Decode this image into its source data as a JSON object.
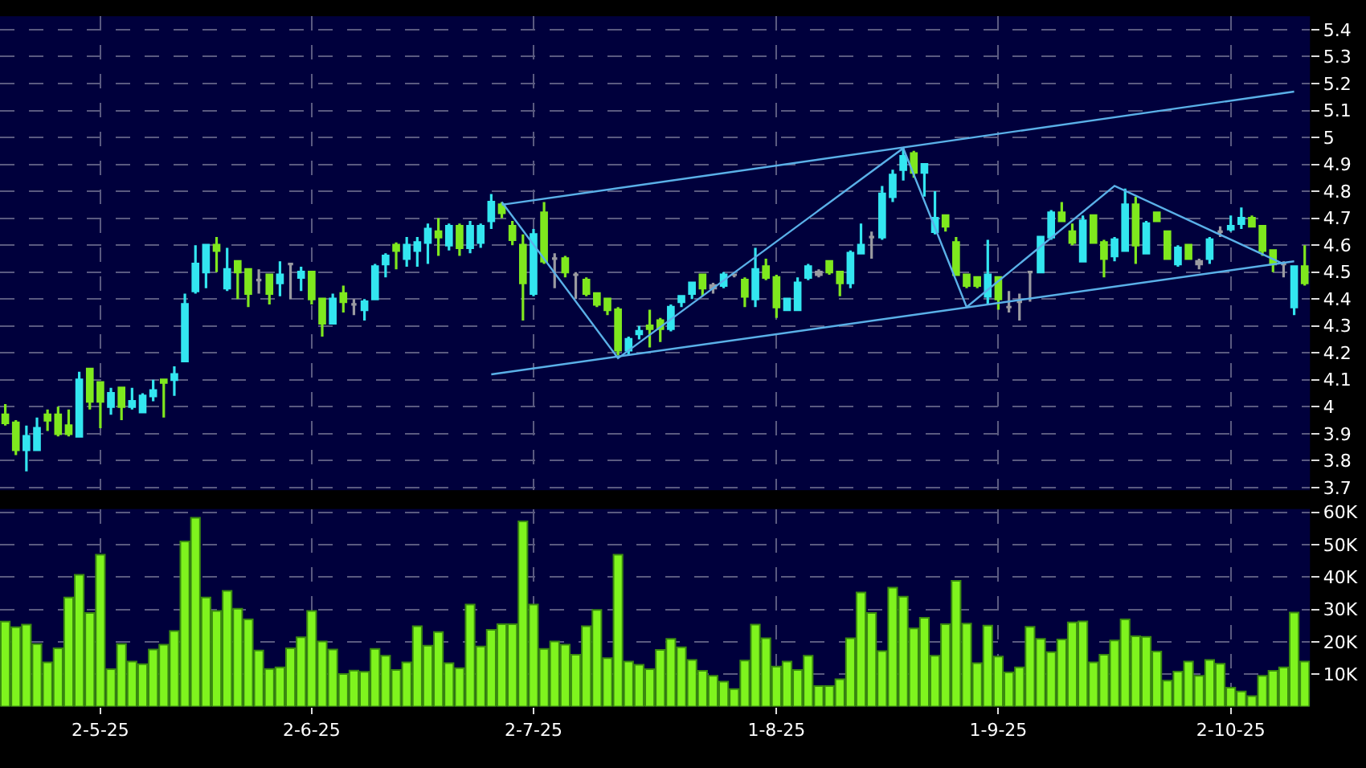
{
  "chart_data": [
    {
      "type": "candlestick",
      "categories": [
        null,
        null,
        null,
        null,
        null,
        null,
        null,
        null,
        null,
        null,
        null,
        null,
        null,
        null,
        null,
        null,
        null,
        null,
        null,
        null,
        null,
        null,
        null,
        null,
        null,
        null,
        null,
        null,
        null,
        null,
        null,
        null,
        null,
        null,
        null,
        null,
        null,
        null,
        null,
        null,
        null,
        null,
        null,
        null,
        null,
        null,
        null,
        null,
        null,
        null,
        null,
        null,
        null,
        null,
        null,
        null,
        null,
        null,
        null,
        null,
        null,
        null,
        null,
        null,
        null,
        null,
        null,
        null,
        null,
        null,
        null,
        null,
        null,
        null,
        null,
        null,
        null,
        null,
        null,
        null,
        null,
        null,
        null,
        null,
        null,
        null,
        null,
        null,
        null,
        null,
        null,
        null,
        null,
        null,
        null,
        null,
        null,
        null,
        null,
        null,
        null,
        null,
        null,
        null,
        null,
        null,
        null,
        null,
        null,
        null,
        null,
        null,
        null,
        null,
        null,
        null,
        null,
        null,
        null,
        null,
        null,
        null,
        null,
        null
      ],
      "ohlc": [
        [
          3.97,
          4.01,
          3.93,
          3.94
        ],
        [
          3.94,
          3.95,
          3.82,
          3.84
        ],
        [
          3.84,
          3.93,
          3.76,
          3.89
        ],
        [
          3.84,
          3.96,
          3.84,
          3.92
        ],
        [
          3.97,
          3.99,
          3.91,
          3.95
        ],
        [
          3.97,
          4.0,
          3.89,
          3.9
        ],
        [
          3.93,
          3.99,
          3.89,
          3.9
        ],
        [
          3.89,
          4.13,
          3.89,
          4.1
        ],
        [
          4.14,
          4.14,
          3.99,
          4.02
        ],
        [
          4.09,
          4.09,
          3.92,
          4.02
        ],
        [
          4.0,
          4.07,
          3.97,
          4.05
        ],
        [
          4.07,
          4.07,
          3.95,
          4.0
        ],
        [
          4.0,
          4.07,
          3.99,
          4.02
        ],
        [
          3.98,
          4.05,
          3.98,
          4.04
        ],
        [
          4.04,
          4.1,
          4.02,
          4.06
        ],
        [
          4.1,
          4.1,
          3.96,
          4.09
        ],
        [
          4.1,
          4.15,
          4.04,
          4.12
        ],
        [
          4.17,
          4.42,
          4.17,
          4.38
        ],
        [
          4.43,
          4.6,
          4.42,
          4.53
        ],
        [
          4.5,
          4.6,
          4.44,
          4.6
        ],
        [
          4.6,
          4.63,
          4.5,
          4.58
        ],
        [
          4.44,
          4.59,
          4.43,
          4.51
        ],
        [
          4.54,
          4.54,
          4.4,
          4.5
        ],
        [
          4.51,
          4.51,
          4.37,
          4.42
        ],
        [
          4.47,
          4.51,
          4.42,
          4.47
        ],
        [
          4.49,
          4.49,
          4.38,
          4.42
        ],
        [
          4.46,
          4.54,
          4.41,
          4.49
        ],
        [
          4.53,
          4.53,
          4.4,
          4.53
        ],
        [
          4.48,
          4.52,
          4.43,
          4.5
        ],
        [
          4.5,
          4.5,
          4.38,
          4.4
        ],
        [
          4.4,
          4.4,
          4.26,
          4.31
        ],
        [
          4.31,
          4.42,
          4.31,
          4.4
        ],
        [
          4.42,
          4.45,
          4.35,
          4.39
        ],
        [
          4.38,
          4.4,
          4.34,
          4.38
        ],
        [
          4.36,
          4.4,
          4.32,
          4.39
        ],
        [
          4.4,
          4.53,
          4.4,
          4.52
        ],
        [
          4.53,
          4.57,
          4.48,
          4.56
        ],
        [
          4.6,
          4.61,
          4.51,
          4.58
        ],
        [
          4.55,
          4.63,
          4.52,
          4.6
        ],
        [
          4.58,
          4.63,
          4.52,
          4.61
        ],
        [
          4.61,
          4.68,
          4.53,
          4.66
        ],
        [
          4.65,
          4.7,
          4.56,
          4.63
        ],
        [
          4.6,
          4.68,
          4.58,
          4.67
        ],
        [
          4.67,
          4.68,
          4.56,
          4.59
        ],
        [
          4.59,
          4.69,
          4.57,
          4.67
        ],
        [
          4.61,
          4.68,
          4.59,
          4.67
        ],
        [
          4.69,
          4.79,
          4.66,
          4.76
        ],
        [
          4.75,
          4.76,
          4.7,
          4.72
        ],
        [
          4.67,
          4.69,
          4.6,
          4.62
        ],
        [
          4.6,
          4.64,
          4.32,
          4.46
        ],
        [
          4.42,
          4.66,
          4.41,
          4.64
        ],
        [
          4.72,
          4.76,
          4.53,
          4.54
        ],
        [
          4.55,
          4.57,
          4.44,
          4.55
        ],
        [
          4.55,
          4.56,
          4.48,
          4.5
        ],
        [
          4.49,
          4.5,
          4.4,
          4.49
        ],
        [
          4.47,
          4.48,
          4.41,
          4.42
        ],
        [
          4.42,
          4.42,
          4.37,
          4.38
        ],
        [
          4.4,
          4.4,
          4.34,
          4.36
        ],
        [
          4.36,
          4.37,
          4.19,
          4.21
        ],
        [
          4.21,
          4.26,
          4.19,
          4.25
        ],
        [
          4.27,
          4.3,
          4.25,
          4.28
        ],
        [
          4.3,
          4.36,
          4.22,
          4.29
        ],
        [
          4.32,
          4.33,
          4.24,
          4.29
        ],
        [
          4.29,
          4.38,
          4.28,
          4.37
        ],
        [
          4.39,
          4.41,
          4.37,
          4.41
        ],
        [
          4.42,
          4.46,
          4.4,
          4.46
        ],
        [
          4.49,
          4.49,
          4.41,
          4.44
        ],
        [
          4.45,
          4.46,
          4.42,
          4.44
        ],
        [
          4.45,
          4.5,
          4.44,
          4.49
        ],
        [
          4.49,
          4.49,
          4.48,
          4.49
        ],
        [
          4.47,
          4.48,
          4.37,
          4.41
        ],
        [
          4.4,
          4.59,
          4.37,
          4.51
        ],
        [
          4.52,
          4.55,
          4.47,
          4.48
        ],
        [
          4.48,
          4.49,
          4.33,
          4.37
        ],
        [
          4.36,
          4.4,
          4.36,
          4.4
        ],
        [
          4.36,
          4.48,
          4.36,
          4.46
        ],
        [
          4.48,
          4.53,
          4.47,
          4.52
        ],
        [
          4.5,
          4.51,
          4.48,
          4.49
        ],
        [
          4.54,
          4.54,
          4.49,
          4.5
        ],
        [
          4.5,
          4.5,
          4.41,
          4.46
        ],
        [
          4.46,
          4.58,
          4.44,
          4.57
        ],
        [
          4.57,
          4.68,
          4.57,
          4.6
        ],
        [
          4.63,
          4.65,
          4.55,
          4.63
        ],
        [
          4.63,
          4.82,
          4.62,
          4.79
        ],
        [
          4.78,
          4.88,
          4.76,
          4.86
        ],
        [
          4.88,
          4.96,
          4.84,
          4.93
        ],
        [
          4.94,
          4.95,
          4.85,
          4.87
        ],
        [
          4.87,
          4.9,
          4.78,
          4.9
        ],
        [
          4.65,
          4.8,
          4.64,
          4.7
        ],
        [
          4.71,
          4.71,
          4.65,
          4.67
        ],
        [
          4.61,
          4.63,
          4.49,
          4.49
        ],
        [
          4.49,
          4.49,
          4.44,
          4.45
        ],
        [
          4.48,
          4.48,
          4.44,
          4.45
        ],
        [
          4.41,
          4.62,
          4.38,
          4.49
        ],
        [
          4.48,
          4.48,
          4.36,
          4.4
        ],
        [
          4.37,
          4.43,
          4.35,
          4.37
        ],
        [
          4.39,
          4.42,
          4.32,
          4.39
        ],
        [
          4.5,
          4.5,
          4.39,
          4.5
        ],
        [
          4.5,
          4.63,
          4.5,
          4.63
        ],
        [
          4.63,
          4.73,
          4.62,
          4.72
        ],
        [
          4.72,
          4.76,
          4.69,
          4.69
        ],
        [
          4.65,
          4.68,
          4.6,
          4.61
        ],
        [
          4.54,
          4.71,
          4.54,
          4.69
        ],
        [
          4.71,
          4.71,
          4.61,
          4.61
        ],
        [
          4.61,
          4.62,
          4.48,
          4.55
        ],
        [
          4.56,
          4.63,
          4.54,
          4.62
        ],
        [
          4.58,
          4.81,
          4.58,
          4.75
        ],
        [
          4.75,
          4.78,
          4.53,
          4.6
        ],
        [
          4.57,
          4.69,
          4.57,
          4.68
        ],
        [
          4.72,
          4.72,
          4.69,
          4.69
        ],
        [
          4.65,
          4.65,
          4.55,
          4.55
        ],
        [
          4.53,
          4.6,
          4.52,
          4.59
        ],
        [
          4.6,
          4.6,
          4.55,
          4.55
        ],
        [
          4.54,
          4.55,
          4.51,
          4.53
        ],
        [
          4.55,
          4.63,
          4.53,
          4.62
        ],
        [
          4.65,
          4.67,
          4.63,
          4.65
        ],
        [
          4.66,
          4.71,
          4.65,
          4.67
        ],
        [
          4.68,
          4.74,
          4.66,
          4.7
        ],
        [
          4.7,
          4.71,
          4.67,
          4.67
        ],
        [
          4.67,
          4.67,
          4.56,
          4.58
        ],
        [
          4.58,
          4.58,
          4.5,
          4.53
        ],
        [
          4.53,
          4.54,
          4.48,
          4.53
        ],
        [
          4.37,
          4.52,
          4.34,
          4.52
        ],
        [
          4.52,
          4.6,
          4.45,
          4.46
        ]
      ],
      "colors": [
        "#7fe81e",
        "#7fe81e",
        "#33e6f0",
        "#33e6f0",
        "#7fe81e",
        "#7fe81e",
        "#7fe81e",
        "#33e6f0",
        "#7fe81e",
        "#7fe81e",
        "#33e6f0",
        "#7fe81e",
        "#33e6f0",
        "#33e6f0",
        "#33e6f0",
        "#7fe81e",
        "#33e6f0",
        "#33e6f0",
        "#33e6f0",
        "#33e6f0",
        "#7fe81e",
        "#33e6f0",
        "#7fe81e",
        "#7fe81e",
        "#9a9aa0",
        "#7fe81e",
        "#33e6f0",
        "#9a9aa0",
        "#33e6f0",
        "#7fe81e",
        "#7fe81e",
        "#33e6f0",
        "#7fe81e",
        "#9a9aa0",
        "#33e6f0",
        "#33e6f0",
        "#33e6f0",
        "#7fe81e",
        "#33e6f0",
        "#33e6f0",
        "#33e6f0",
        "#7fe81e",
        "#33e6f0",
        "#7fe81e",
        "#33e6f0",
        "#33e6f0",
        "#33e6f0",
        "#7fe81e",
        "#7fe81e",
        "#7fe81e",
        "#33e6f0",
        "#7fe81e",
        "#9a9aa0",
        "#7fe81e",
        "#9a9aa0",
        "#7fe81e",
        "#7fe81e",
        "#7fe81e",
        "#7fe81e",
        "#33e6f0",
        "#33e6f0",
        "#7fe81e",
        "#7fe81e",
        "#33e6f0",
        "#33e6f0",
        "#33e6f0",
        "#7fe81e",
        "#9a9aa0",
        "#33e6f0",
        "#9a9aa0",
        "#7fe81e",
        "#33e6f0",
        "#7fe81e",
        "#7fe81e",
        "#33e6f0",
        "#33e6f0",
        "#33e6f0",
        "#9a9aa0",
        "#7fe81e",
        "#7fe81e",
        "#33e6f0",
        "#33e6f0",
        "#9a9aa0",
        "#33e6f0",
        "#33e6f0",
        "#33e6f0",
        "#7fe81e",
        "#33e6f0",
        "#33e6f0",
        "#7fe81e",
        "#7fe81e",
        "#7fe81e",
        "#7fe81e",
        "#33e6f0",
        "#7fe81e",
        "#9a9aa0",
        "#9a9aa0",
        "#9a9aa0",
        "#33e6f0",
        "#33e6f0",
        "#7fe81e",
        "#7fe81e",
        "#33e6f0",
        "#7fe81e",
        "#7fe81e",
        "#33e6f0",
        "#33e6f0",
        "#7fe81e",
        "#33e6f0",
        "#7fe81e",
        "#7fe81e",
        "#33e6f0",
        "#7fe81e",
        "#9a9aa0",
        "#33e6f0",
        "#9a9aa0",
        "#33e6f0",
        "#33e6f0",
        "#7fe81e",
        "#7fe81e",
        "#7fe81e",
        "#9a9aa0",
        "#33e6f0",
        "#7fe81e"
      ],
      "series": [
        {
          "type": "line",
          "color": "#5ab0e8",
          "values": [
            null,
            null,
            null,
            null,
            null,
            null,
            null,
            null,
            null,
            null,
            null,
            null,
            null,
            null,
            null,
            null,
            null,
            null,
            null,
            null,
            null,
            null,
            null,
            null,
            null,
            null,
            null,
            null,
            null,
            null,
            null,
            null,
            null,
            null,
            null,
            null,
            null,
            null,
            null,
            null,
            null,
            null,
            null,
            null,
            null,
            null,
            null,
            4.75,
            null,
            null,
            null,
            null,
            null,
            null,
            null,
            null,
            null,
            null,
            null,
            null,
            null,
            null,
            null,
            null,
            null,
            null,
            null,
            null,
            null,
            null,
            null,
            null,
            null,
            null,
            null,
            null,
            null,
            null,
            null,
            null,
            null,
            null,
            null,
            null,
            null,
            null,
            null,
            null,
            null,
            null,
            null,
            null,
            null,
            null,
            null,
            null,
            null,
            null,
            null,
            null,
            null,
            null,
            null,
            null,
            null,
            null,
            null,
            null,
            null,
            null,
            null,
            null,
            null,
            null,
            null,
            null,
            null,
            null,
            null,
            null,
            null,
            null,
            5.17,
            null
          ]
        },
        {
          "type": "line",
          "color": "#5ab0e8",
          "values": [
            null,
            null,
            null,
            null,
            null,
            null,
            null,
            null,
            null,
            null,
            null,
            null,
            null,
            null,
            null,
            null,
            null,
            null,
            null,
            null,
            null,
            null,
            null,
            null,
            null,
            null,
            null,
            null,
            null,
            null,
            null,
            null,
            null,
            null,
            null,
            null,
            null,
            null,
            null,
            null,
            null,
            null,
            null,
            null,
            null,
            null,
            4.12,
            null,
            null,
            null,
            null,
            null,
            null,
            null,
            null,
            null,
            null,
            null,
            null,
            null,
            null,
            null,
            null,
            null,
            null,
            null,
            null,
            null,
            null,
            null,
            null,
            null,
            null,
            null,
            null,
            null,
            null,
            null,
            null,
            null,
            null,
            null,
            null,
            null,
            null,
            null,
            null,
            null,
            null,
            null,
            null,
            null,
            null,
            null,
            null,
            null,
            null,
            null,
            null,
            null,
            null,
            null,
            null,
            null,
            null,
            null,
            null,
            null,
            null,
            null,
            null,
            null,
            null,
            null,
            null,
            null,
            null,
            null,
            null,
            null,
            null,
            null,
            4.54,
            null
          ]
        },
        {
          "type": "line",
          "color": "#5ab0e8",
          "values": [
            null,
            null,
            null,
            null,
            null,
            null,
            null,
            null,
            null,
            null,
            null,
            null,
            null,
            null,
            null,
            null,
            null,
            null,
            null,
            null,
            null,
            null,
            null,
            null,
            null,
            null,
            null,
            null,
            null,
            null,
            null,
            null,
            null,
            null,
            null,
            null,
            null,
            null,
            null,
            null,
            null,
            null,
            null,
            null,
            null,
            null,
            null,
            4.76,
            null,
            null,
            null,
            null,
            null,
            null,
            null,
            null,
            null,
            null,
            4.18,
            null,
            null,
            null,
            null,
            null,
            null,
            null,
            null,
            null,
            null,
            null,
            null,
            null,
            null,
            null,
            null,
            null,
            null,
            null,
            null,
            null,
            null,
            null,
            null,
            null,
            null,
            4.96,
            null,
            null,
            null,
            null,
            null,
            4.37,
            null,
            null,
            null,
            null,
            null,
            null,
            null,
            null,
            null,
            null,
            null,
            null,
            null,
            4.82,
            null,
            null,
            null,
            null,
            null,
            null,
            null,
            null,
            null,
            null,
            null,
            null,
            null,
            null,
            null,
            4.53,
            null,
            null
          ]
        }
      ],
      "ylim": [
        3.69,
        5.45
      ],
      "yticks": [
        3.7,
        3.8,
        3.9,
        4,
        4.1,
        4.2,
        4.3,
        4.4,
        4.5,
        4.6,
        4.7,
        4.8,
        4.9,
        5,
        5.1,
        5.2,
        5.3,
        5.4
      ],
      "grid": true,
      "tick_labels": "y"
    },
    {
      "type": "bar",
      "color": "#7ff41e",
      "categories": [
        null,
        null,
        null,
        null,
        null,
        null,
        null,
        null,
        null,
        "2-5-25",
        null,
        null,
        null,
        null,
        null,
        null,
        null,
        null,
        null,
        null,
        null,
        null,
        null,
        null,
        null,
        null,
        null,
        null,
        null,
        "2-6-25",
        null,
        null,
        null,
        null,
        null,
        null,
        null,
        null,
        null,
        null,
        null,
        null,
        null,
        null,
        null,
        null,
        null,
        null,
        null,
        null,
        "2-7-25",
        null,
        null,
        null,
        null,
        null,
        null,
        null,
        null,
        null,
        null,
        null,
        null,
        null,
        null,
        null,
        null,
        null,
        null,
        null,
        null,
        null,
        null,
        "1-8-25",
        null,
        null,
        null,
        null,
        null,
        null,
        null,
        null,
        null,
        null,
        null,
        null,
        null,
        null,
        null,
        null,
        null,
        null,
        null,
        null,
        "1-9-25",
        null,
        null,
        null,
        null,
        null,
        null,
        null,
        null,
        null,
        null,
        null,
        null,
        null,
        null,
        null,
        null,
        null,
        null,
        null,
        null,
        null,
        "2-10-25",
        null,
        null,
        null,
        null,
        null,
        null,
        null
      ],
      "values": [
        26200,
        24500,
        25300,
        19300,
        13600,
        18000,
        33700,
        40700,
        28900,
        46900,
        11500,
        19300,
        13900,
        13100,
        17600,
        19100,
        23300,
        51000,
        58300,
        33700,
        29500,
        35700,
        30200,
        26900,
        17300,
        11600,
        12100,
        18000,
        21400,
        29500,
        20100,
        17600,
        10000,
        11100,
        10700,
        17800,
        15700,
        11300,
        13600,
        24800,
        18800,
        23000,
        13400,
        11800,
        31500,
        18500,
        23700,
        25400,
        25400,
        57200,
        31500,
        17800,
        20100,
        19100,
        16000,
        24800,
        29800,
        14900,
        46900,
        13900,
        12900,
        11500,
        17500,
        20900,
        18300,
        14400,
        11000,
        9500,
        7700,
        5400,
        14200,
        25300,
        21100,
        12300,
        13900,
        11300,
        15700,
        6300,
        6300,
        8400,
        21100,
        35200,
        28900,
        17100,
        36700,
        33900,
        24100,
        27400,
        15700,
        25400,
        38800,
        25600,
        13400,
        25000,
        15400,
        10500,
        12100,
        24600,
        20900,
        16800,
        20700,
        26000,
        26300,
        13600,
        16000,
        20400,
        26900,
        21700,
        21500,
        17000,
        8000,
        10800,
        13900,
        9500,
        14400,
        13200,
        5800,
        4600,
        3200,
        9500,
        11000,
        12100,
        29000,
        13900
      ],
      "ylim": [
        0,
        61000
      ],
      "yticks": [
        {
          "value": 10000,
          "label": "10K"
        },
        {
          "value": 20000,
          "label": "20K"
        },
        {
          "value": 30000,
          "label": "30K"
        },
        {
          "value": 40000,
          "label": "40K"
        },
        {
          "value": 50000,
          "label": "50K"
        },
        {
          "value": 60000,
          "label": "60K"
        }
      ],
      "grid": true
    }
  ]
}
